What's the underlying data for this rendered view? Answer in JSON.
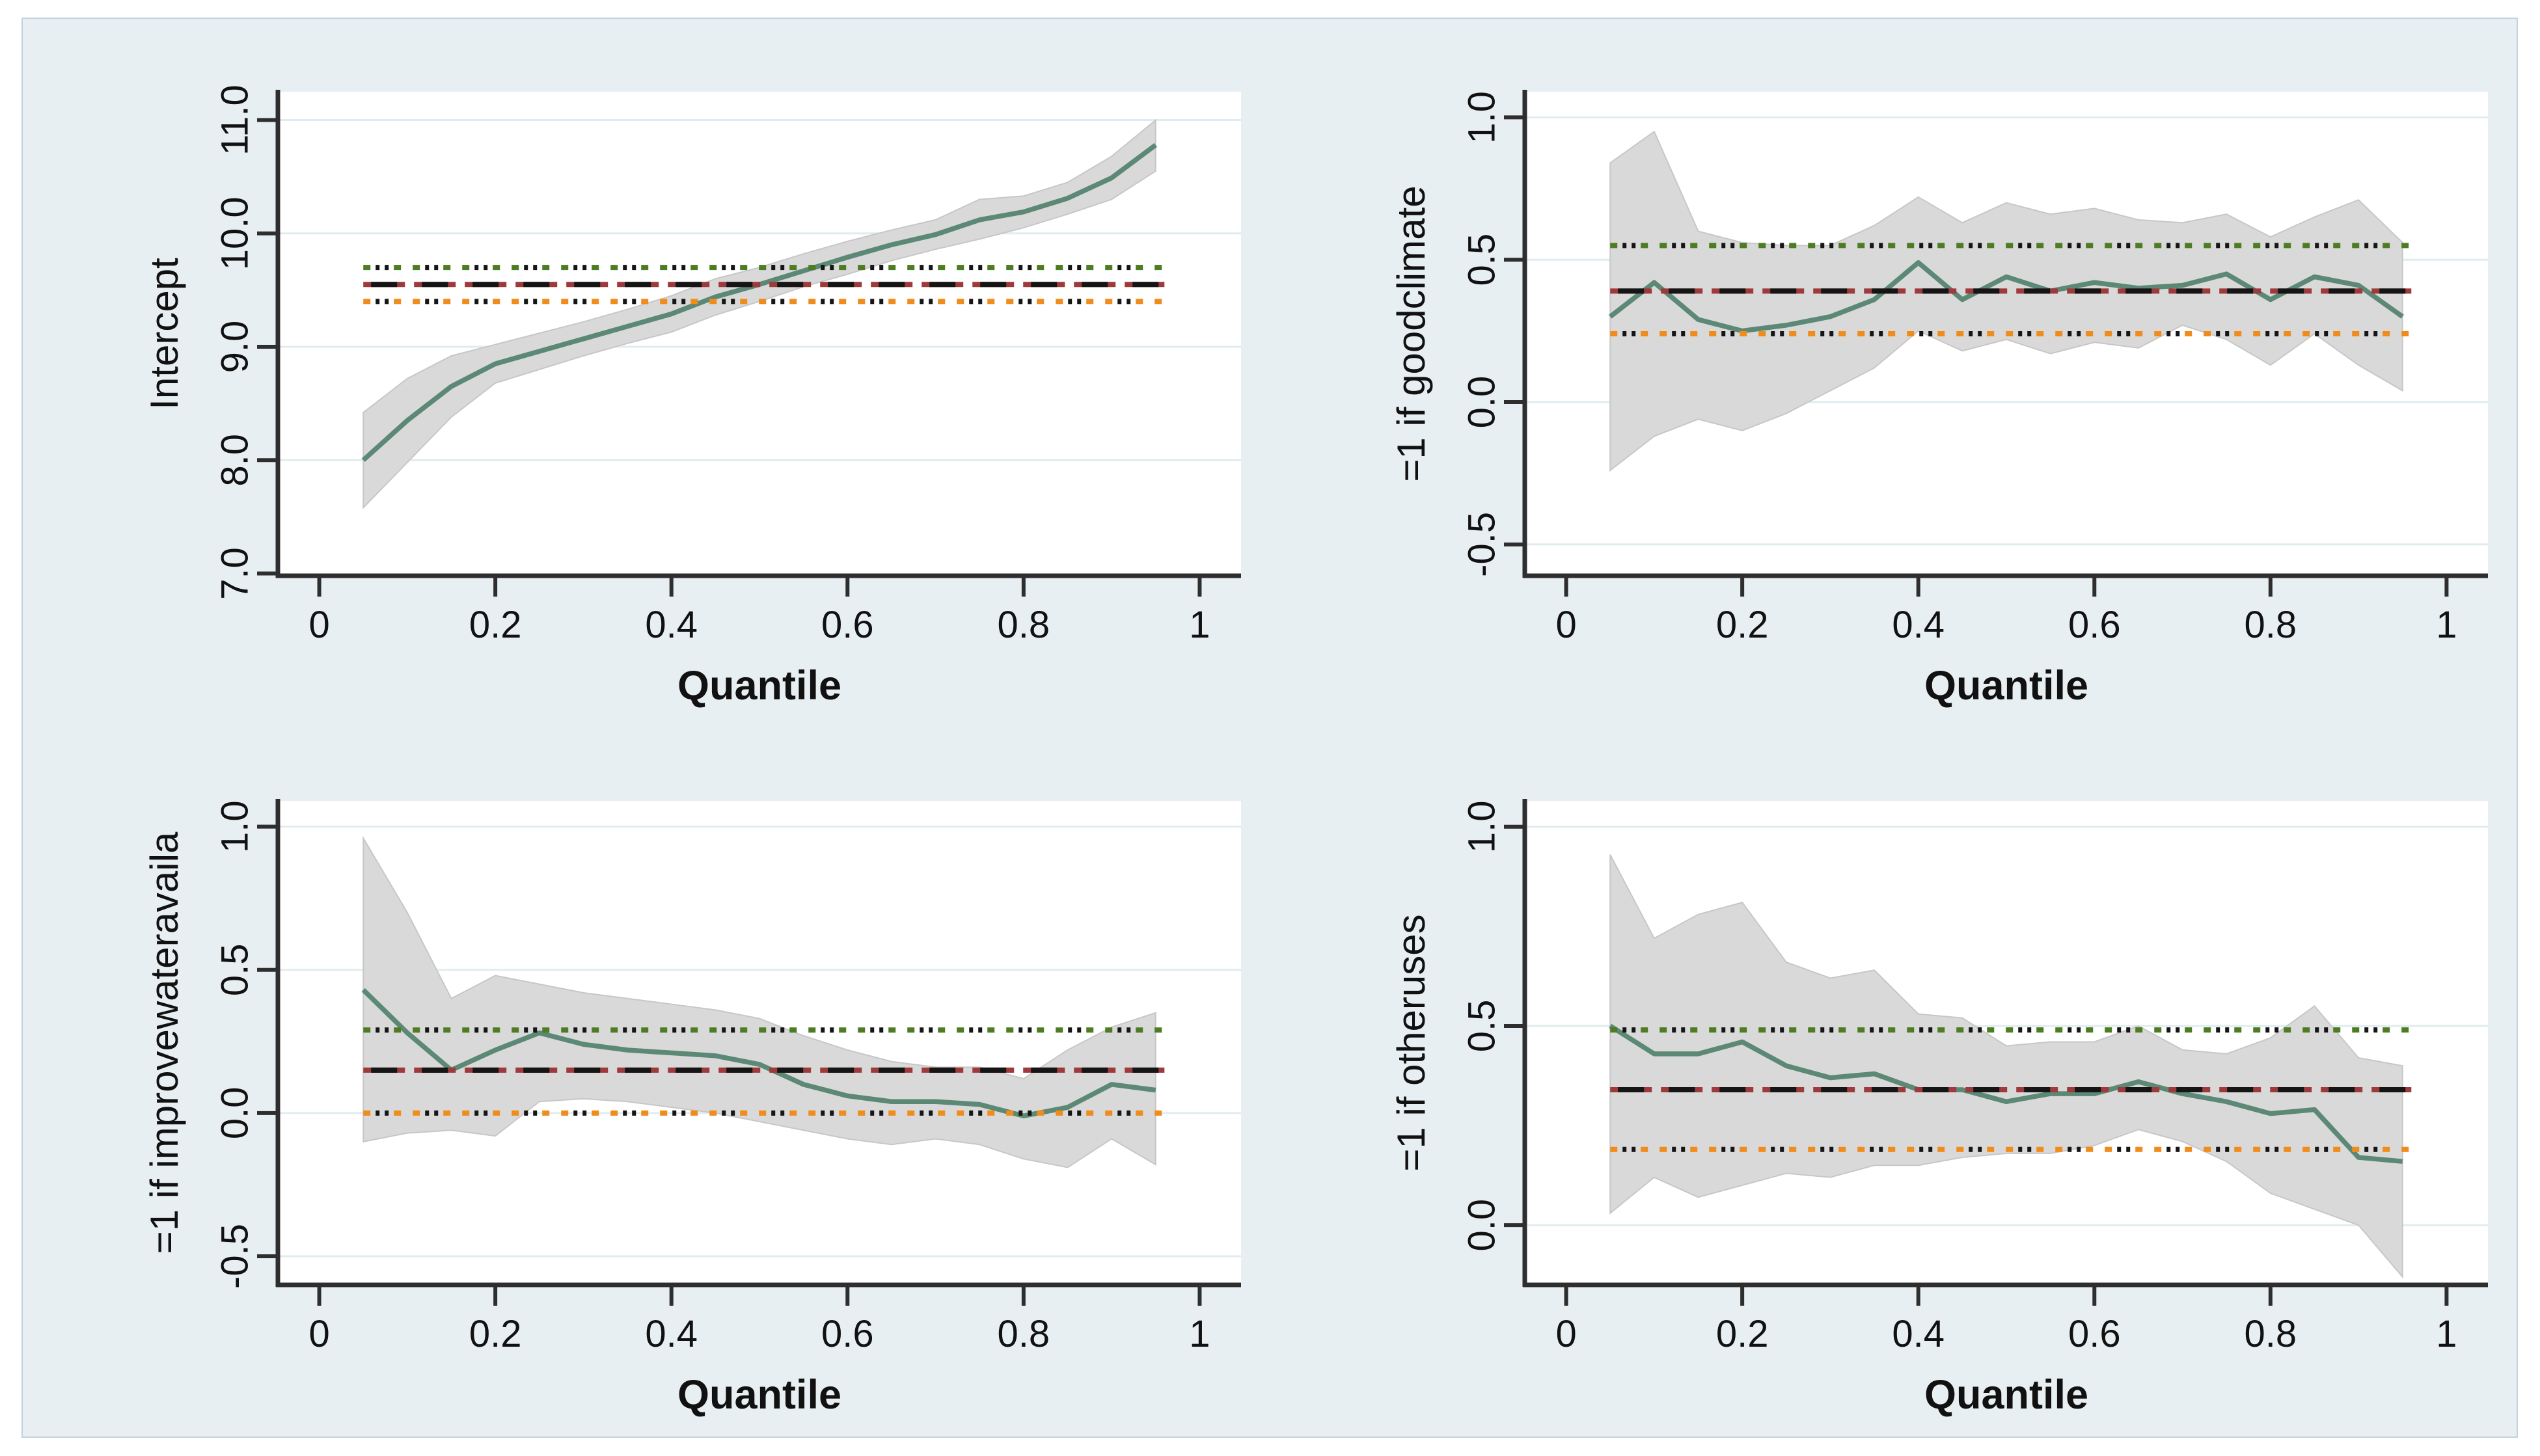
{
  "figure": {
    "xlabel": "Quantile",
    "xlim": [
      -0.047,
      1.047
    ],
    "x": [
      0.05,
      0.1,
      0.15,
      0.2,
      0.25,
      0.3,
      0.35,
      0.4,
      0.45,
      0.5,
      0.55,
      0.6,
      0.65,
      0.7,
      0.75,
      0.8,
      0.85,
      0.9,
      0.95
    ],
    "xticks": [
      {
        "v": 0,
        "label": "0"
      },
      {
        "v": 0.2,
        "label": "0.2"
      },
      {
        "v": 0.4,
        "label": "0.4"
      },
      {
        "v": 0.6,
        "label": "0.6"
      },
      {
        "v": 0.8,
        "label": "0.8"
      },
      {
        "v": 1,
        "label": "1"
      }
    ],
    "colors": {
      "canvas_bg": "#e8eff3",
      "plot_bg": "#ffffff",
      "grid": "#e0ecef",
      "axis": "#2e2e2e",
      "text": "#111111",
      "curve": "#5c8876",
      "band": "#d9d9d9",
      "band_edge": "#c7c7c7",
      "ols_black": "#151515",
      "ols_red": "#9c3a3c",
      "ci_green": "#4d7c22",
      "ci_orange": "#ef8c1c",
      "ci_black": "#151515"
    }
  },
  "chart_data": [
    {
      "type": "line",
      "ylabel": "Intercept",
      "xlabel": "Quantile",
      "ylim": [
        6.98,
        11.25
      ],
      "yticks": [
        {
          "v": 7.0,
          "label": "7.0"
        },
        {
          "v": 8.0,
          "label": "8.0"
        },
        {
          "v": 9.0,
          "label": "9.0"
        },
        {
          "v": 10.0,
          "label": "10.0"
        },
        {
          "v": 11.0,
          "label": "11.0"
        }
      ],
      "series": [
        {
          "name": "quantile estimate",
          "values": [
            8.0,
            8.35,
            8.65,
            8.85,
            8.96,
            9.07,
            9.18,
            9.29,
            9.44,
            9.55,
            9.67,
            9.79,
            9.9,
            9.99,
            10.12,
            10.19,
            10.31,
            10.49,
            10.78
          ]
        }
      ],
      "band_upper": [
        8.42,
        8.72,
        8.92,
        9.02,
        9.12,
        9.22,
        9.33,
        9.45,
        9.6,
        9.7,
        9.82,
        9.93,
        10.03,
        10.12,
        10.3,
        10.33,
        10.45,
        10.68,
        11.0
      ],
      "band_lower": [
        7.58,
        7.98,
        8.38,
        8.68,
        8.8,
        8.92,
        9.03,
        9.13,
        9.28,
        9.4,
        9.53,
        9.64,
        9.76,
        9.86,
        9.95,
        10.05,
        10.17,
        10.3,
        10.55
      ],
      "ols_estimate": 9.55,
      "ols_ci_upper": 9.7,
      "ols_ci_lower": 9.4
    },
    {
      "type": "line",
      "ylabel": "=1 if goodclimate",
      "xlabel": "Quantile",
      "ylim": [
        -0.61,
        1.09
      ],
      "yticks": [
        {
          "v": -0.5,
          "label": "-0.5"
        },
        {
          "v": 0.0,
          "label": "0.0"
        },
        {
          "v": 0.5,
          "label": "0.5"
        },
        {
          "v": 1.0,
          "label": "1.0"
        }
      ],
      "series": [
        {
          "name": "quantile estimate",
          "values": [
            0.3,
            0.42,
            0.29,
            0.25,
            0.27,
            0.3,
            0.36,
            0.49,
            0.36,
            0.44,
            0.39,
            0.42,
            0.4,
            0.41,
            0.45,
            0.36,
            0.44,
            0.41,
            0.3
          ]
        }
      ],
      "band_upper": [
        0.84,
        0.95,
        0.6,
        0.56,
        0.55,
        0.55,
        0.62,
        0.72,
        0.63,
        0.7,
        0.66,
        0.68,
        0.64,
        0.63,
        0.66,
        0.58,
        0.65,
        0.71,
        0.56
      ],
      "band_lower": [
        -0.24,
        -0.12,
        -0.06,
        -0.1,
        -0.04,
        0.04,
        0.12,
        0.25,
        0.18,
        0.22,
        0.17,
        0.21,
        0.19,
        0.27,
        0.22,
        0.13,
        0.24,
        0.13,
        0.04
      ],
      "ols_estimate": 0.39,
      "ols_ci_upper": 0.55,
      "ols_ci_lower": 0.24
    },
    {
      "type": "line",
      "ylabel": "=1 if improvewateravaila",
      "xlabel": "Quantile",
      "ylim": [
        -0.6,
        1.09
      ],
      "yticks": [
        {
          "v": -0.5,
          "label": "-0.5"
        },
        {
          "v": 0.0,
          "label": "0.0"
        },
        {
          "v": 0.5,
          "label": "0.5"
        },
        {
          "v": 1.0,
          "label": "1.0"
        }
      ],
      "series": [
        {
          "name": "quantile estimate",
          "values": [
            0.43,
            0.28,
            0.15,
            0.22,
            0.28,
            0.24,
            0.22,
            0.21,
            0.2,
            0.17,
            0.1,
            0.06,
            0.04,
            0.04,
            0.03,
            -0.01,
            0.02,
            0.1,
            0.08
          ]
        }
      ],
      "band_upper": [
        0.96,
        0.7,
        0.4,
        0.48,
        0.45,
        0.42,
        0.4,
        0.38,
        0.36,
        0.33,
        0.27,
        0.22,
        0.18,
        0.16,
        0.16,
        0.12,
        0.22,
        0.3,
        0.35
      ],
      "band_lower": [
        -0.1,
        -0.07,
        -0.06,
        -0.08,
        0.04,
        0.05,
        0.04,
        0.02,
        0.0,
        -0.03,
        -0.06,
        -0.09,
        -0.11,
        -0.09,
        -0.11,
        -0.16,
        -0.19,
        -0.09,
        -0.18
      ],
      "ols_estimate": 0.15,
      "ols_ci_upper": 0.29,
      "ols_ci_lower": 0.0
    },
    {
      "type": "line",
      "ylabel": "=1 if otheruses",
      "xlabel": "Quantile",
      "ylim": [
        -0.15,
        1.065
      ],
      "yticks": [
        {
          "v": 0.0,
          "label": "0.0"
        },
        {
          "v": 0.5,
          "label": "0.5"
        },
        {
          "v": 1.0,
          "label": "1.0"
        }
      ],
      "series": [
        {
          "name": "quantile estimate",
          "values": [
            0.5,
            0.43,
            0.43,
            0.46,
            0.4,
            0.37,
            0.38,
            0.34,
            0.34,
            0.31,
            0.33,
            0.33,
            0.36,
            0.33,
            0.31,
            0.28,
            0.29,
            0.17,
            0.16
          ]
        }
      ],
      "band_upper": [
        0.93,
        0.72,
        0.78,
        0.81,
        0.66,
        0.62,
        0.64,
        0.53,
        0.52,
        0.45,
        0.46,
        0.46,
        0.5,
        0.44,
        0.43,
        0.47,
        0.55,
        0.42,
        0.4
      ],
      "band_lower": [
        0.03,
        0.12,
        0.07,
        0.1,
        0.13,
        0.12,
        0.15,
        0.15,
        0.17,
        0.18,
        0.18,
        0.2,
        0.24,
        0.21,
        0.16,
        0.08,
        0.04,
        0.0,
        -0.13
      ],
      "ols_estimate": 0.34,
      "ols_ci_upper": 0.49,
      "ols_ci_lower": 0.19
    }
  ]
}
